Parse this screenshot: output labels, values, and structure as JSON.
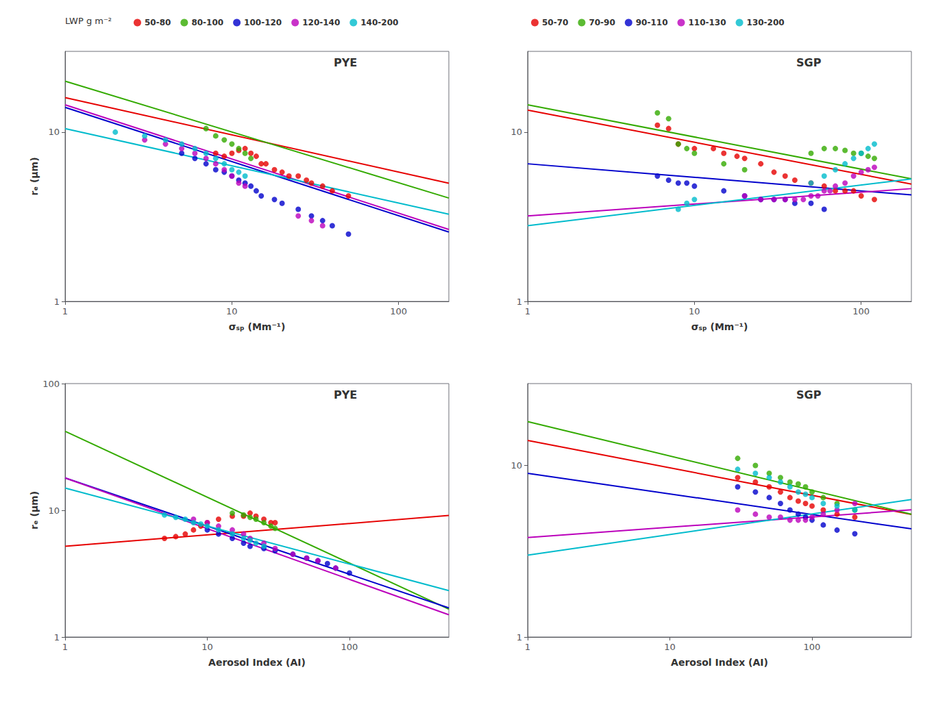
{
  "chart_data": [
    {
      "type": "scatter",
      "title": "PYE",
      "xlabel": "σₛₚ (Mm⁻¹)",
      "ylabel": "rₑ (μm)",
      "log": true,
      "grid": false,
      "xlim": [
        1,
        200
      ],
      "ylim": [
        1,
        30
      ],
      "xticks": [
        1,
        10,
        100
      ],
      "yticks": [
        1,
        10
      ],
      "legend": "top",
      "legend_title": "LWP g m⁻²",
      "series": [
        {
          "name": "50-80",
          "type": "scatter",
          "color": "#e60000",
          "x": [
            8,
            9,
            10,
            11,
            12,
            13,
            14,
            15,
            16,
            18,
            20,
            22,
            25,
            28,
            30,
            35,
            40,
            50
          ],
          "values": [
            7.5,
            7.2,
            7.5,
            7.8,
            8.0,
            7.5,
            7.2,
            6.5,
            6.5,
            6.0,
            5.8,
            5.5,
            5.5,
            5.2,
            5.0,
            4.8,
            4.5,
            4.2
          ]
        },
        {
          "name": "80-100",
          "type": "scatter",
          "color": "#33aa00",
          "x": [
            7,
            8,
            9,
            10,
            11,
            12,
            13
          ],
          "values": [
            10.5,
            9.5,
            9.0,
            8.5,
            8.0,
            7.5,
            7.0
          ]
        },
        {
          "name": "100-120",
          "type": "scatter",
          "color": "#0000cc",
          "x": [
            5,
            6,
            7,
            8,
            9,
            10,
            11,
            12,
            13,
            14,
            15,
            18,
            20,
            25,
            30,
            35,
            40,
            50
          ],
          "values": [
            7.5,
            7.0,
            6.5,
            6.0,
            5.8,
            5.5,
            5.2,
            5.0,
            4.8,
            4.5,
            4.2,
            4.0,
            3.8,
            3.5,
            3.2,
            3.0,
            2.8,
            2.5
          ]
        },
        {
          "name": "120-140",
          "type": "scatter",
          "color": "#bb00bb",
          "x": [
            3,
            4,
            5,
            6,
            7,
            8,
            9,
            10,
            11,
            12,
            25,
            30,
            35
          ],
          "values": [
            9.0,
            8.5,
            8.0,
            7.5,
            7.0,
            6.5,
            6.0,
            5.5,
            5.0,
            4.8,
            3.2,
            3.0,
            2.8
          ]
        },
        {
          "name": "140-200",
          "type": "scatter",
          "color": "#00bbcc",
          "x": [
            2,
            3,
            4,
            5,
            6,
            7,
            8,
            9,
            10,
            11,
            12
          ],
          "values": [
            10.0,
            9.5,
            9.0,
            8.5,
            8.0,
            7.5,
            7.0,
            6.5,
            6.0,
            5.8,
            5.5
          ]
        },
        {
          "type": "line",
          "color": "#e60000",
          "x": [
            1,
            200
          ],
          "values": [
            16.0,
            4.9876
          ]
        },
        {
          "type": "line",
          "color": "#33aa00",
          "x": [
            1,
            200
          ],
          "values": [
            20.0,
            4.0806
          ]
        },
        {
          "type": "line",
          "color": "#0000cc",
          "x": [
            1,
            200
          ],
          "values": [
            14.0,
            2.5692
          ]
        },
        {
          "type": "line",
          "color": "#bb00bb",
          "x": [
            1,
            200
          ],
          "values": [
            14.5,
            2.661
          ]
        },
        {
          "type": "line",
          "color": "#00bbcc",
          "x": [
            1,
            200
          ],
          "values": [
            10.5,
            3.2731
          ]
        }
      ]
    },
    {
      "type": "scatter",
      "title": "SGP",
      "xlabel": "σₛₚ (Mm⁻¹)",
      "log": true,
      "grid": false,
      "xlim": [
        1,
        200
      ],
      "ylim": [
        1,
        30
      ],
      "xticks": [
        1,
        10,
        100
      ],
      "yticks": [
        1,
        10
      ],
      "legend": "top",
      "series": [
        {
          "name": "50-70",
          "type": "scatter",
          "color": "#e60000",
          "x": [
            6,
            7,
            8,
            10,
            13,
            15,
            18,
            20,
            25,
            30,
            35,
            40,
            50,
            60,
            70,
            80,
            90,
            100,
            120
          ],
          "values": [
            11,
            10.5,
            8.5,
            8.0,
            8.0,
            7.5,
            7.2,
            7.0,
            6.5,
            5.8,
            5.5,
            5.2,
            5.0,
            4.8,
            4.5,
            4.5,
            4.5,
            4.2,
            4.0
          ]
        },
        {
          "name": "70-90",
          "type": "scatter",
          "color": "#33aa00",
          "x": [
            6,
            7,
            8,
            9,
            10,
            15,
            20,
            50,
            60,
            70,
            80,
            90,
            100,
            110,
            120
          ],
          "values": [
            13,
            12,
            8.5,
            8.0,
            7.5,
            6.5,
            6.0,
            7.5,
            8.0,
            8.0,
            7.8,
            7.5,
            7.5,
            7.2,
            7.0
          ]
        },
        {
          "name": "90-110",
          "type": "scatter",
          "color": "#0000cc",
          "x": [
            6,
            7,
            8,
            9,
            10,
            15,
            20,
            25,
            30,
            35,
            40,
            50,
            60
          ],
          "values": [
            5.5,
            5.2,
            5.0,
            5.0,
            4.8,
            4.5,
            4.2,
            4.0,
            4.0,
            4.0,
            3.8,
            3.8,
            3.5
          ]
        },
        {
          "name": "110-130",
          "type": "scatter",
          "color": "#bb00bb",
          "x": [
            20,
            25,
            30,
            35,
            40,
            45,
            50,
            55,
            60,
            65,
            70,
            80,
            90,
            100,
            110,
            120
          ],
          "values": [
            4.2,
            4.0,
            4.0,
            4.0,
            4.0,
            4.0,
            4.2,
            4.2,
            4.5,
            4.5,
            4.8,
            5.0,
            5.5,
            5.8,
            6.0,
            6.2
          ]
        },
        {
          "name": "130-200",
          "type": "scatter",
          "color": "#00bbcc",
          "x": [
            8,
            9,
            10,
            50,
            60,
            70,
            80,
            90,
            100,
            110,
            120
          ],
          "values": [
            3.5,
            3.8,
            4.0,
            5.0,
            5.5,
            6.0,
            6.5,
            7.0,
            7.5,
            8.0,
            8.5
          ]
        },
        {
          "type": "line",
          "color": "#e60000",
          "x": [
            1,
            200
          ],
          "values": [
            13.5,
            4.9333
          ]
        },
        {
          "type": "line",
          "color": "#33aa00",
          "x": [
            1,
            200
          ],
          "values": [
            14.5,
            5.2987
          ]
        },
        {
          "type": "line",
          "color": "#0000cc",
          "x": [
            1,
            200
          ],
          "values": [
            6.5,
            4.2543
          ]
        },
        {
          "type": "line",
          "color": "#bb00bb",
          "x": [
            1,
            200
          ],
          "values": [
            3.2,
            4.6368
          ]
        },
        {
          "type": "line",
          "color": "#00bbcc",
          "x": [
            1,
            200
          ],
          "values": [
            2.8,
            5.2879
          ]
        }
      ]
    },
    {
      "type": "scatter",
      "title": "PYE",
      "xlabel": "Aerosol Index (AI)",
      "ylabel": "rₑ (μm)",
      "log": true,
      "grid": false,
      "xlim": [
        1,
        500
      ],
      "ylim": [
        1,
        100
      ],
      "xticks": [
        1,
        10,
        100
      ],
      "yticks": [
        1,
        10,
        100
      ],
      "series": [
        {
          "name": "50-80",
          "type": "scatter",
          "color": "#e60000",
          "x": [
            5,
            6,
            7,
            8,
            9,
            10,
            12,
            15,
            18,
            20,
            22,
            25,
            28,
            30
          ],
          "values": [
            6.0,
            6.2,
            6.5,
            7.0,
            7.5,
            8.0,
            8.5,
            9.0,
            9.0,
            9.5,
            9.0,
            8.5,
            8.0,
            8.0
          ]
        },
        {
          "name": "80-100",
          "type": "scatter",
          "color": "#33aa00",
          "x": [
            15,
            18,
            20,
            22,
            25,
            28,
            30
          ],
          "values": [
            9.5,
            9.2,
            8.8,
            8.5,
            8.0,
            7.5,
            7.2
          ]
        },
        {
          "name": "100-120",
          "type": "scatter",
          "color": "#0000cc",
          "x": [
            10,
            12,
            15,
            18,
            20,
            25,
            30,
            40,
            50,
            60,
            70,
            80,
            100
          ],
          "values": [
            7.0,
            6.5,
            6.0,
            5.5,
            5.2,
            5.0,
            4.8,
            4.5,
            4.2,
            4.0,
            3.8,
            3.5,
            3.2
          ]
        },
        {
          "name": "120-140",
          "type": "scatter",
          "color": "#bb00bb",
          "x": [
            8,
            10,
            12,
            15,
            18,
            20,
            25,
            30,
            40,
            50,
            60,
            80
          ],
          "values": [
            8.5,
            8.0,
            7.5,
            7.0,
            6.5,
            6.0,
            5.5,
            5.0,
            4.5,
            4.2,
            4.0,
            3.5
          ]
        },
        {
          "name": "140-200",
          "type": "scatter",
          "color": "#00bbcc",
          "x": [
            5,
            6,
            7,
            8,
            9,
            10,
            12,
            15,
            18,
            20,
            22,
            25
          ],
          "values": [
            9.2,
            8.8,
            8.5,
            8.0,
            7.8,
            7.5,
            7.0,
            6.5,
            6.0,
            5.8,
            5.5,
            5.2
          ]
        },
        {
          "type": "line",
          "color": "#e60000",
          "x": [
            1,
            500
          ],
          "values": [
            5.2,
            9.0973
          ]
        },
        {
          "type": "line",
          "color": "#33aa00",
          "x": [
            1,
            500
          ],
          "values": [
            42.0,
            1.6588
          ]
        },
        {
          "type": "line",
          "color": "#0000cc",
          "x": [
            1,
            500
          ],
          "values": [
            18.0,
            1.6969
          ]
        },
        {
          "type": "line",
          "color": "#bb00bb",
          "x": [
            1,
            500
          ],
          "values": [
            18.0,
            1.4986
          ]
        },
        {
          "type": "line",
          "color": "#00bbcc",
          "x": [
            1,
            500
          ],
          "values": [
            15.0,
            2.3249
          ]
        }
      ]
    },
    {
      "type": "scatter",
      "title": "SGP",
      "xlabel": "Aerosol Index (AI)",
      "log": true,
      "grid": false,
      "xlim": [
        1,
        500
      ],
      "ylim": [
        1,
        30
      ],
      "xticks": [
        1,
        10,
        100
      ],
      "yticks": [
        1,
        10
      ],
      "series": [
        {
          "name": "50-70",
          "type": "scatter",
          "color": "#e60000",
          "x": [
            30,
            40,
            50,
            60,
            70,
            80,
            90,
            100,
            120,
            150,
            200
          ],
          "values": [
            8.5,
            8.0,
            7.5,
            7.0,
            6.5,
            6.2,
            6.0,
            5.8,
            5.5,
            5.2,
            5.0
          ]
        },
        {
          "name": "70-90",
          "type": "scatter",
          "color": "#33aa00",
          "x": [
            30,
            40,
            50,
            60,
            70,
            80,
            90,
            100,
            120,
            150,
            200
          ],
          "values": [
            11,
            10,
            9,
            8.5,
            8.0,
            7.8,
            7.5,
            7.0,
            6.5,
            6.0,
            5.5
          ]
        },
        {
          "name": "90-110",
          "type": "scatter",
          "color": "#0000cc",
          "x": [
            30,
            40,
            50,
            60,
            70,
            80,
            90,
            100,
            120,
            150,
            200
          ],
          "values": [
            7.5,
            7.0,
            6.5,
            6.0,
            5.5,
            5.2,
            5.0,
            4.8,
            4.5,
            4.2,
            4.0
          ]
        },
        {
          "name": "110-130",
          "type": "scatter",
          "color": "#bb00bb",
          "x": [
            30,
            40,
            50,
            60,
            70,
            80,
            90,
            100,
            120,
            150,
            200
          ],
          "values": [
            5.5,
            5.2,
            5.0,
            5.0,
            4.8,
            4.8,
            4.8,
            5.0,
            5.2,
            5.5,
            6.0
          ]
        },
        {
          "name": "130-200",
          "type": "scatter",
          "color": "#00bbcc",
          "x": [
            30,
            40,
            50,
            60,
            70,
            80,
            90,
            100,
            120,
            150,
            200
          ],
          "values": [
            9.5,
            9.0,
            8.5,
            8.0,
            7.5,
            7.0,
            6.8,
            6.5,
            6.0,
            5.8,
            5.5
          ]
        },
        {
          "type": "line",
          "color": "#e60000",
          "x": [
            1,
            500
          ],
          "values": [
            14.0,
            5.1796
          ]
        },
        {
          "type": "line",
          "color": "#33aa00",
          "x": [
            1,
            500
          ],
          "values": [
            18.0,
            5.1937
          ]
        },
        {
          "type": "line",
          "color": "#0000cc",
          "x": [
            1,
            500
          ],
          "values": [
            9.0,
            4.2694
          ]
        },
        {
          "type": "line",
          "color": "#bb00bb",
          "x": [
            1,
            500
          ],
          "values": [
            3.8,
            5.5172
          ]
        },
        {
          "type": "line",
          "color": "#00bbcc",
          "x": [
            1,
            500
          ],
          "values": [
            3.0,
            6.3241
          ]
        }
      ]
    }
  ]
}
